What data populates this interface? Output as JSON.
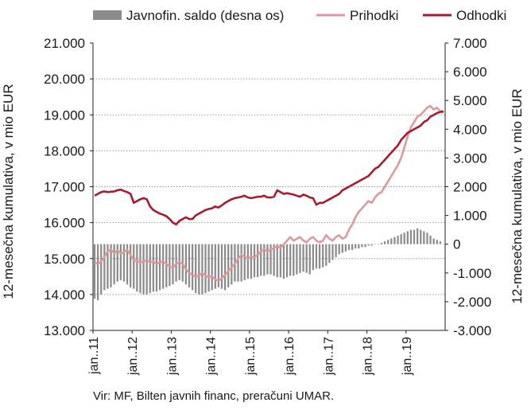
{
  "chart_data": {
    "type": "bar+line",
    "legend_position": "top",
    "grid": true,
    "ylabel_left": "12-mesečna kumulativa, v mio EUR",
    "ylabel_right": "12-mesečna kumulativa, v mio EUR",
    "ylim_left": [
      13000,
      21000
    ],
    "ylim_right": [
      -3000,
      7000
    ],
    "y_ticks_left": [
      "13.000",
      "14.000",
      "15.000",
      "16.000",
      "17.000",
      "18.000",
      "19.000",
      "20.000",
      "21.000"
    ],
    "y_ticks_right": [
      "-3.000",
      "-2.000",
      "-1.000",
      "0",
      "1.000",
      "2.000",
      "3.000",
      "4.000",
      "5.000",
      "6.000",
      "7.000"
    ],
    "x_ticks": [
      "jan..11",
      "jan..12",
      "jan..13",
      "jan..14",
      "jan..15",
      "jan..16",
      "jan..17",
      "jan..18",
      "jan..19"
    ],
    "x_start": "2011-01",
    "months": 108,
    "series": [
      {
        "name": "Javnofin. saldo (desna os)",
        "kind": "bar",
        "axis": "right",
        "color": "#8c8c8c",
        "values": [
          -1900,
          -1950,
          -1750,
          -1600,
          -1550,
          -1500,
          -1400,
          -1300,
          -1250,
          -1300,
          -1400,
          -1500,
          -1550,
          -1650,
          -1700,
          -1750,
          -1750,
          -1700,
          -1650,
          -1650,
          -1600,
          -1550,
          -1500,
          -1450,
          -1400,
          -1300,
          -1250,
          -1300,
          -1400,
          -1500,
          -1600,
          -1700,
          -1750,
          -1750,
          -1700,
          -1650,
          -1600,
          -1550,
          -1500,
          -1550,
          -1600,
          -1500,
          -1400,
          -1300,
          -1300,
          -1300,
          -1250,
          -1200,
          -1200,
          -1150,
          -1150,
          -1100,
          -1100,
          -1050,
          -1050,
          -1100,
          -1150,
          -1150,
          -1200,
          -1150,
          -1100,
          -1100,
          -1050,
          -1000,
          -950,
          -1000,
          -1050,
          -900,
          -850,
          -850,
          -800,
          -750,
          -650,
          -550,
          -450,
          -350,
          -300,
          -250,
          -200,
          -200,
          -150,
          -150,
          -100,
          -100,
          -50,
          -50,
          0,
          0,
          50,
          100,
          150,
          200,
          250,
          300,
          350,
          400,
          450,
          500,
          500,
          550,
          500,
          450,
          400,
          300,
          200,
          150,
          100,
          0
        ]
      },
      {
        "name": "Prihodki",
        "kind": "line",
        "axis": "left",
        "color": "#dc9a9a",
        "values": [
          14880,
          14850,
          14920,
          15050,
          15200,
          15250,
          15150,
          15230,
          15150,
          15180,
          15250,
          15100,
          14950,
          14930,
          14900,
          14920,
          14950,
          14900,
          14920,
          14850,
          14900,
          14920,
          14850,
          14780,
          14750,
          14850,
          14900,
          14850,
          14700,
          14600,
          14550,
          14500,
          14530,
          14600,
          14520,
          14480,
          14500,
          14420,
          14380,
          14450,
          14550,
          14650,
          14750,
          14850,
          15000,
          15100,
          15050,
          15000,
          15050,
          15050,
          15100,
          15200,
          15250,
          15200,
          15250,
          15300,
          15350,
          15300,
          15400,
          15500,
          15600,
          15500,
          15550,
          15600,
          15500,
          15450,
          15550,
          15600,
          15500,
          15450,
          15500,
          15650,
          15550,
          15500,
          15600,
          15650,
          15550,
          15600,
          15800,
          15950,
          16150,
          16300,
          16400,
          16500,
          16600,
          16550,
          16700,
          16800,
          16850,
          17000,
          17150,
          17300,
          17450,
          17600,
          17800,
          18100,
          18400,
          18650,
          18800,
          18950,
          19000,
          19100,
          19200,
          19250,
          19150,
          19200,
          19100,
          19050
        ]
      },
      {
        "name": "Odhodki",
        "kind": "line",
        "axis": "left",
        "color": "#a51c30",
        "values": [
          16750,
          16800,
          16850,
          16870,
          16850,
          16860,
          16870,
          16900,
          16920,
          16880,
          16850,
          16800,
          16550,
          16600,
          16650,
          16680,
          16650,
          16450,
          16350,
          16300,
          16250,
          16220,
          16180,
          16100,
          16000,
          15950,
          16050,
          16100,
          16150,
          16100,
          16100,
          16200,
          16250,
          16300,
          16350,
          16380,
          16400,
          16450,
          16420,
          16480,
          16550,
          16600,
          16650,
          16680,
          16700,
          16720,
          16750,
          16700,
          16680,
          16700,
          16720,
          16720,
          16750,
          16700,
          16700,
          16720,
          16900,
          16850,
          16800,
          16820,
          16800,
          16780,
          16750,
          16720,
          16780,
          16750,
          16700,
          16680,
          16500,
          16550,
          16550,
          16600,
          16650,
          16700,
          16750,
          16800,
          16900,
          16950,
          17000,
          17050,
          17100,
          17150,
          17200,
          17250,
          17300,
          17400,
          17500,
          17550,
          17650,
          17750,
          17850,
          17950,
          18050,
          18150,
          18300,
          18400,
          18500,
          18550,
          18600,
          18650,
          18700,
          18800,
          18850,
          18950,
          19000,
          19050,
          19080,
          19100
        ]
      }
    ]
  },
  "source_text": "Vir: MF, Bilten javnih financ, preračuni UMAR."
}
